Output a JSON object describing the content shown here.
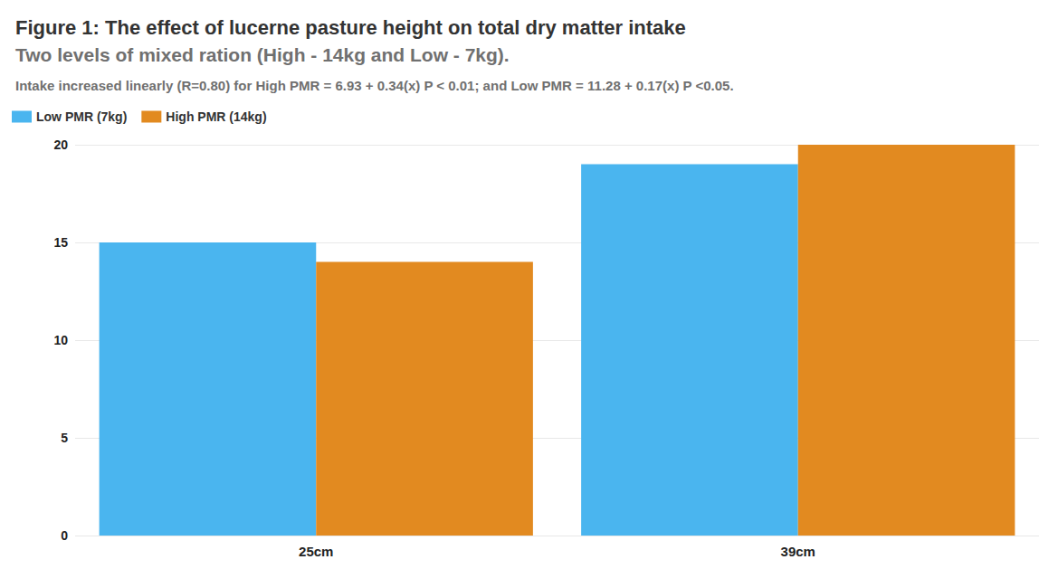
{
  "chart_data": {
    "type": "bar",
    "title": "Figure 1: The effect of lucerne pasture height on total dry matter intake",
    "subtitle": "Two levels of mixed ration (High - 14kg and Low - 7kg).",
    "annotations": [
      "Intake increased linearly (R=0.80) for High PMR = 6.93 + 0.34(x) P < 0.01; and Low PMR = 11.28 + 0.17(x) P <0.05."
    ],
    "categories": [
      "25cm",
      "39cm"
    ],
    "series": [
      {
        "name": "Low PMR (7kg)",
        "color": "#4ab5ef",
        "values": [
          15,
          19
        ]
      },
      {
        "name": "High PMR (14kg)",
        "color": "#e28a20",
        "values": [
          14,
          20
        ]
      }
    ],
    "ylim": [
      0,
      20
    ],
    "yticks": [
      0,
      5,
      10,
      15,
      20
    ],
    "grid": true,
    "legend": "top-left"
  }
}
